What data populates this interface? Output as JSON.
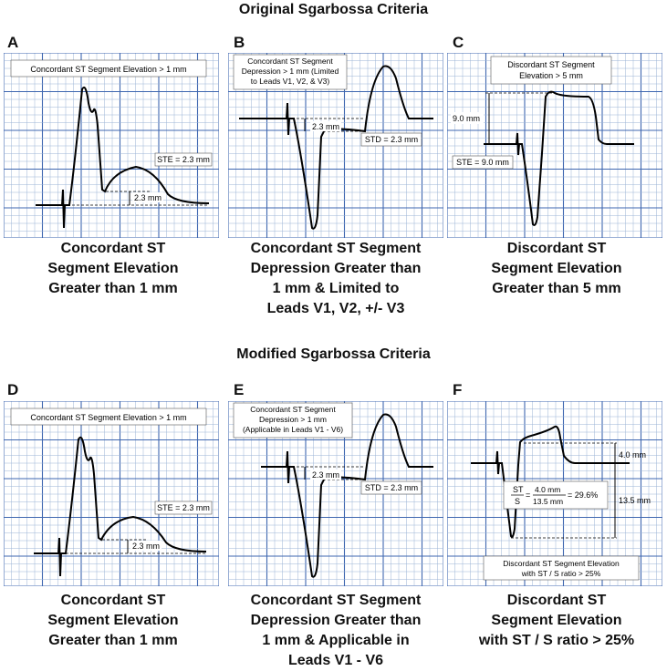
{
  "top_title": "Original Sgarbossa Criteria",
  "bottom_title": "Modified Sgarbossa Criteria",
  "colors": {
    "grid_minor": "#9bb3d6",
    "grid_major": "#3f67b0",
    "trace": "#000000"
  },
  "panels": {
    "A": {
      "letter": "A",
      "box_lines": [
        "Concordant ST Segment  Elevation > 1 mm"
      ],
      "measure_label": "STE = 2.3 mm",
      "dim_label": "2.3 mm",
      "caption": [
        "Concordant ST",
        "Segment Elevation",
        "Greater than 1 mm"
      ]
    },
    "B": {
      "letter": "B",
      "box_lines": [
        "Concordant ST Segment",
        "Depression > 1 mm (Limited",
        "to Leads V1, V2, & V3)"
      ],
      "measure_label": "STD = 2.3 mm",
      "dim_label": "2.3 mm",
      "caption": [
        "Concordant ST Segment",
        "Depression Greater than",
        "1 mm & Limited to",
        "Leads V1, V2, +/- V3"
      ]
    },
    "C": {
      "letter": "C",
      "box_lines": [
        "Discordant ST Segment",
        "Elevation > 5 mm"
      ],
      "measure_label": "STE = 9.0 mm",
      "dim_label": "9.0 mm",
      "caption": [
        "Discordant ST",
        "Segment Elevation",
        "Greater than 5 mm"
      ]
    },
    "D": {
      "letter": "D",
      "box_lines": [
        "Concordant ST Segment  Elevation > 1 mm"
      ],
      "measure_label": "STE = 2.3 mm",
      "dim_label": "2.3 mm",
      "caption": [
        "Concordant ST",
        "Segment Elevation",
        "Greater than 1 mm"
      ]
    },
    "E": {
      "letter": "E",
      "box_lines": [
        "Concordant ST Segment",
        "Depression > 1 mm",
        "(Applicable in Leads V1 - V6)"
      ],
      "measure_label": "STD = 2.3 mm",
      "dim_label": "2.3 mm",
      "caption": [
        "Concordant ST Segment",
        "Depression Greater than",
        "1 mm & Applicable in",
        "Leads V1 - V6"
      ]
    },
    "F": {
      "letter": "F",
      "box_lines": [
        "Discordant ST Segment Elevation",
        "with ST / S ratio > 25%"
      ],
      "ratio_top_left": "ST",
      "ratio_bottom_left": "S",
      "ratio_top_right": "4.0 mm",
      "ratio_bottom_right": "13.5 mm",
      "ratio_result": "= 29.6%",
      "st_label": "4.0 mm",
      "s_label": "13.5 mm",
      "caption": [
        "Discordant ST",
        "Segment Elevation",
        "with ST / S ratio > 25%"
      ]
    }
  }
}
